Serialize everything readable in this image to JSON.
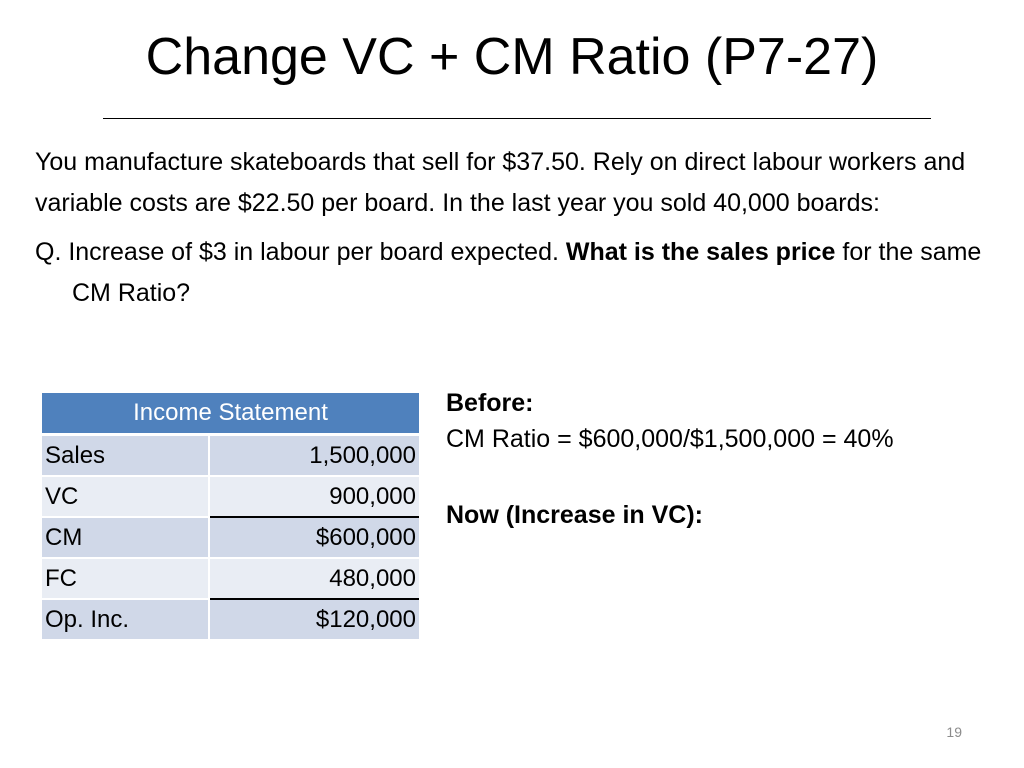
{
  "slide": {
    "title": "Change VC + CM Ratio (P7-27)",
    "body": {
      "paragraph1": "You manufacture skateboards that sell for $37.50.  Rely on direct labour workers and variable costs are $22.50 per board.  In the last year you sold 40,000 boards:",
      "question_prefix": "Q.  Increase of $3 in labour per board expected.  ",
      "question_bold": "What is the sales price",
      "question_suffix": " for the same CM Ratio?"
    },
    "income_statement": {
      "header": "Income Statement",
      "rows": [
        {
          "label": "Sales",
          "value": "1,500,000"
        },
        {
          "label": "VC",
          "value": "900,000"
        },
        {
          "label": "CM",
          "value": "$600,000"
        },
        {
          "label": "FC",
          "value": "480,000"
        },
        {
          "label": "Op. Inc.",
          "value": "$120,000"
        }
      ]
    },
    "analysis": {
      "before_heading": "Before:",
      "before_formula": "CM Ratio = $600,000/$1,500,000 = 40%",
      "now_heading": "Now (Increase in VC):"
    },
    "page_number": "19"
  },
  "colors": {
    "table_header": "#4f81bd",
    "table_row_dark": "#d0d8e8",
    "table_row_light": "#e9edf4",
    "page_number": "#8c8c8c"
  }
}
